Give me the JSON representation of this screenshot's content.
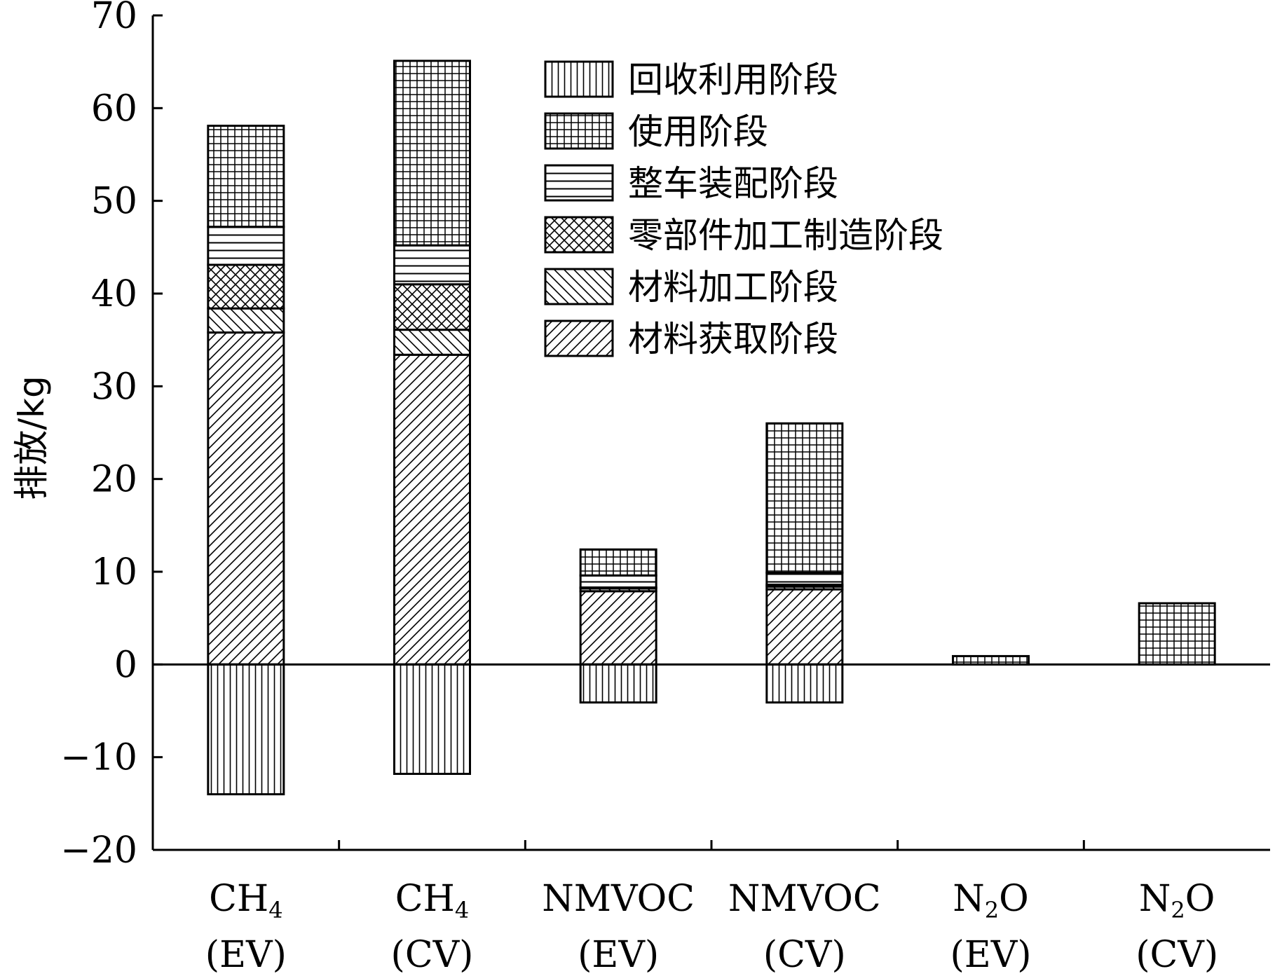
{
  "chart_data": {
    "type": "bar",
    "stacked": true,
    "ylabel": "排放/kg",
    "ylim": [
      -20,
      70
    ],
    "yticks": [
      -20,
      -10,
      0,
      10,
      20,
      30,
      40,
      50,
      60,
      70
    ],
    "grid": false,
    "legend_position": "top-right",
    "categories": [
      {
        "line1_main": "CH",
        "line1_sub": "4",
        "line1_tail": "",
        "line2": "(EV)"
      },
      {
        "line1_main": "CH",
        "line1_sub": "4",
        "line1_tail": "",
        "line2": "(CV)"
      },
      {
        "line1_main": "NMVOC",
        "line1_sub": "",
        "line1_tail": "",
        "line2": "(EV)"
      },
      {
        "line1_main": "NMVOC",
        "line1_sub": "",
        "line1_tail": "",
        "line2": "(CV)"
      },
      {
        "line1_main": "N",
        "line1_sub": "2",
        "line1_tail": "O",
        "line2": "(EV)"
      },
      {
        "line1_main": "N",
        "line1_sub": "2",
        "line1_tail": "O",
        "line2": "(CV)"
      }
    ],
    "series": [
      {
        "name": "材料获取阶段",
        "pattern": "diag-fwd",
        "values": [
          35.8,
          33.4,
          7.9,
          8.1,
          0.0,
          0.0
        ]
      },
      {
        "name": "材料加工阶段",
        "pattern": "diag-back",
        "values": [
          2.6,
          2.7,
          0.3,
          0.3,
          0.0,
          0.0
        ]
      },
      {
        "name": "零部件加工制造阶段",
        "pattern": "crosshatch",
        "values": [
          4.7,
          4.9,
          0.1,
          0.2,
          0.0,
          0.0
        ]
      },
      {
        "name": "整车装配阶段",
        "pattern": "horizontal",
        "values": [
          4.1,
          4.2,
          1.3,
          1.3,
          0.0,
          0.0
        ]
      },
      {
        "name": "使用阶段",
        "pattern": "grid",
        "values": [
          10.9,
          19.9,
          2.8,
          16.1,
          0.9,
          6.6
        ]
      },
      {
        "name": "回收利用阶段",
        "pattern": "vertical",
        "values": [
          -14.0,
          -11.8,
          -4.1,
          -4.1,
          0.0,
          0.0
        ]
      }
    ],
    "legend_order": [
      "回收利用阶段",
      "使用阶段",
      "整车装配阶段",
      "零部件加工制造阶段",
      "材料加工阶段",
      "材料获取阶段"
    ]
  }
}
